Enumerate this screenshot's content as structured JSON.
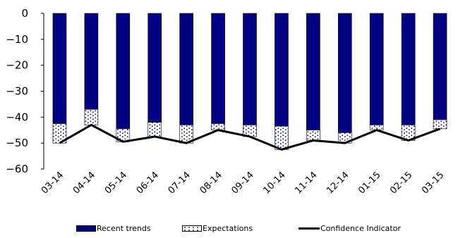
{
  "chart_data": {
    "type": "bar",
    "stacked": true,
    "categories": [
      "03-14",
      "04-14",
      "05-14",
      "06-14",
      "07-14",
      "08-14",
      "09-14",
      "10-14",
      "11-14",
      "12-14",
      "01-15",
      "02-15",
      "03-15"
    ],
    "series": [
      {
        "name": "Recent trends",
        "kind": "bar",
        "color": "#000080",
        "values": [
          -42.5,
          -37,
          -44.5,
          -42,
          -43,
          -42.5,
          -43,
          -43.5,
          -45,
          -46,
          -43,
          -43,
          -41
        ]
      },
      {
        "name": "Expectations",
        "kind": "bar",
        "color": "#ffffff",
        "pattern": "dots",
        "values": [
          -7.5,
          -6,
          -5,
          -5.5,
          -7,
          -2.5,
          -4.5,
          -9,
          -4,
          -4,
          -2,
          -6,
          -3.5
        ]
      },
      {
        "name": "Confidence Indicator",
        "kind": "line",
        "color": "#000000",
        "values": [
          -50,
          -43,
          -49.5,
          -47.5,
          -50,
          -45,
          -47.5,
          -52.5,
          -49,
          -50,
          -45,
          -49,
          -44.5
        ]
      }
    ],
    "yticks": [
      0,
      -10,
      -20,
      -30,
      -40,
      -50,
      -60
    ],
    "ylim": [
      -60,
      0
    ],
    "grid": false,
    "legend_position": "bottom"
  }
}
